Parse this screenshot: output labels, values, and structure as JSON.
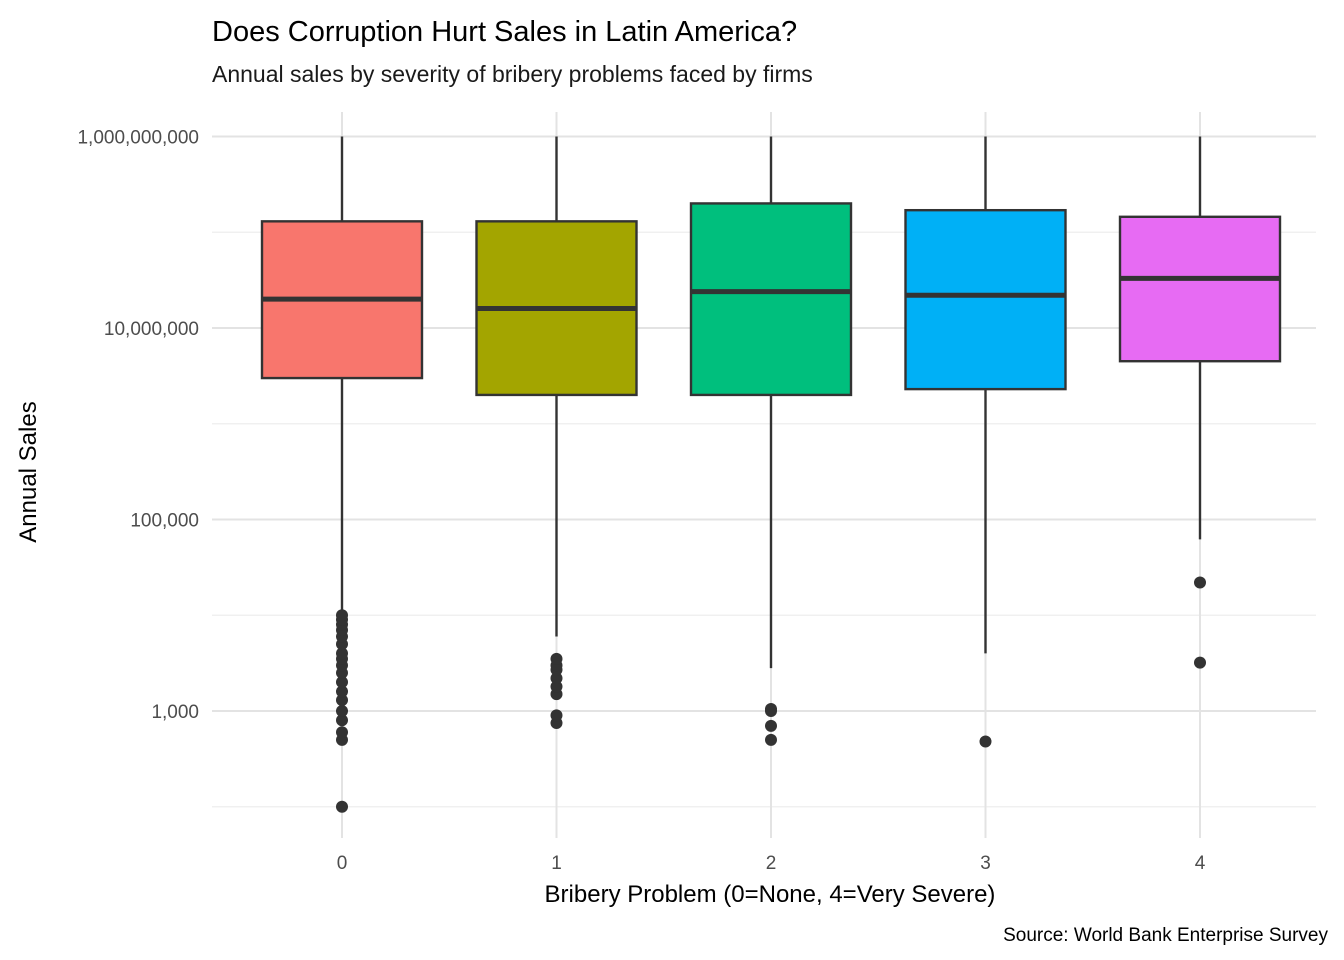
{
  "chart_data": {
    "type": "boxplot",
    "title": "Does Corruption Hurt Sales in Latin America?",
    "subtitle": "Annual sales by severity of bribery problems faced by firms",
    "xlabel": "Bribery Problem (0=None, 4=Very Severe)",
    "ylabel": "Annual Sales",
    "caption": "Source: World Bank Enterprise Survey",
    "y_scale": "log10",
    "ylim": [
      60,
      2000000000
    ],
    "y_ticks": [
      1000,
      100000,
      10000000,
      1000000000
    ],
    "y_tick_labels": [
      "1,000",
      "100,000",
      "10,000,000",
      "1,000,000,000"
    ],
    "y_minor_ticks": [
      100,
      10000,
      1000000,
      100000000
    ],
    "categories": [
      "0",
      "1",
      "2",
      "3",
      "4"
    ],
    "grid": true,
    "legend": "none",
    "boxes": [
      {
        "category": "0",
        "color": "#F8766D",
        "lower_whisker": 1100,
        "q1": 3000000,
        "median": 20000000,
        "q3": 130000000,
        "upper_whisker": 1000000000,
        "outliers": [
          100,
          500,
          600,
          800,
          1000,
          1300,
          1600,
          2000,
          2500,
          3000,
          3500,
          4000,
          5000,
          6000,
          7000,
          8000,
          9000,
          10000
        ]
      },
      {
        "category": "1",
        "color": "#A3A500",
        "lower_whisker": 6000,
        "q1": 2000000,
        "median": 16000000,
        "q3": 130000000,
        "upper_whisker": 1000000000,
        "outliers": [
          750,
          900,
          1500,
          1800,
          2200,
          2700,
          3000,
          3500
        ]
      },
      {
        "category": "2",
        "color": "#00BF7D",
        "lower_whisker": 2800,
        "q1": 2000000,
        "median": 24000000,
        "q3": 200000000,
        "upper_whisker": 1000000000,
        "outliers": [
          500,
          700,
          1000,
          1050
        ]
      },
      {
        "category": "3",
        "color": "#00B0F6",
        "lower_whisker": 4000,
        "q1": 2300000,
        "median": 22000000,
        "q3": 170000000,
        "upper_whisker": 1000000000,
        "outliers": [
          480
        ]
      },
      {
        "category": "4",
        "color": "#E76BF3",
        "lower_whisker": 62000,
        "q1": 4500000,
        "median": 33000000,
        "q3": 145000000,
        "upper_whisker": 1000000000,
        "outliers": [
          3200,
          22000
        ]
      }
    ]
  }
}
